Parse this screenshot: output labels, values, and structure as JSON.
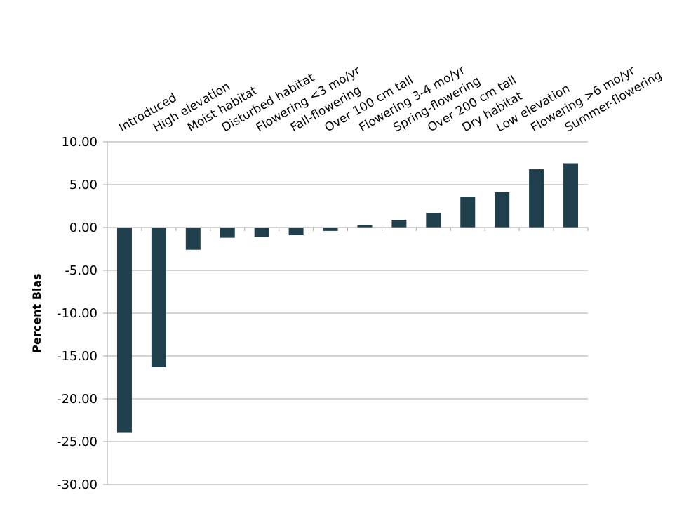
{
  "chart_data": {
    "type": "bar",
    "title": "",
    "xlabel": "",
    "ylabel": "Percent Bias",
    "categories": [
      "Introduced",
      "High elevation",
      "Moist habitat",
      "Disturbed habitat",
      "Flowering <3 mo/yr",
      "Fall-flowering",
      "Over 100 cm tall",
      "Flowering 3-4 mo/yr",
      "Spring-flowering",
      "Over 200 cm tall",
      "Dry habitat",
      "Low elevation",
      "Flowering >6 mo/yr",
      "Summer-flowering"
    ],
    "values": [
      -23.9,
      -16.3,
      -2.6,
      -1.2,
      -1.1,
      -0.9,
      -0.4,
      0.3,
      0.9,
      1.7,
      3.6,
      4.1,
      6.8,
      7.5
    ],
    "ylim": [
      -30,
      10
    ],
    "yticks": [
      10,
      5,
      0,
      -5,
      -10,
      -15,
      -20,
      -25,
      -30
    ],
    "ytick_labels": [
      "10.00",
      "5.00",
      "0.00",
      "-5.00",
      "-10.00",
      "-15.00",
      "-20.00",
      "-25.00",
      "-30.00"
    ],
    "grid": true,
    "legend": "none",
    "bar_color": "#203f4d",
    "grid_color": "#a6a6a6"
  }
}
